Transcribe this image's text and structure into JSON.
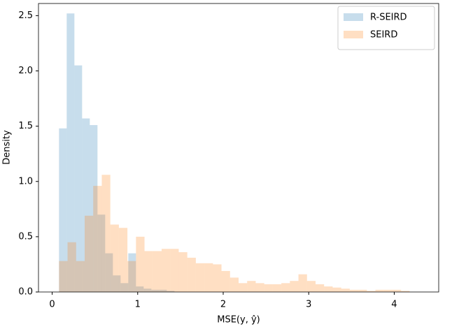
{
  "chart_data": {
    "type": "histogram",
    "xlabel": "MSE(y, ŷ)",
    "ylabel": "Density",
    "xlim": [
      -0.16,
      4.52
    ],
    "ylim": [
      0,
      2.61
    ],
    "xticks": [
      0,
      1,
      2,
      3,
      4
    ],
    "yticks": [
      {
        "value": 0,
        "label": "0.0"
      },
      0.5,
      {
        "value": 1,
        "label": "1.0"
      },
      1.5,
      {
        "value": 2,
        "label": "2.0"
      },
      2.5
    ],
    "alpha": 0.25,
    "legend": "upper right",
    "series": [
      {
        "name": "R-SEIRD",
        "color": "#1f77b4",
        "bins": [
          0.08,
          0.17,
          0.26,
          0.35,
          0.44,
          0.53,
          0.62,
          0.71,
          0.8,
          0.89,
          0.98,
          1.07,
          1.16,
          1.25,
          1.34,
          1.43
        ],
        "values": [
          1.48,
          2.52,
          2.05,
          1.57,
          1.51,
          0.7,
          0.35,
          0.15,
          0.08,
          0.35,
          0.05,
          0.03,
          0.02,
          0.02,
          0.01
        ]
      },
      {
        "name": "SEIRD",
        "color": "#ff7f0e",
        "bins": [
          0.08,
          0.18,
          0.28,
          0.38,
          0.48,
          0.58,
          0.68,
          0.78,
          0.88,
          0.98,
          1.08,
          1.18,
          1.28,
          1.38,
          1.48,
          1.58,
          1.68,
          1.78,
          1.88,
          1.98,
          2.08,
          2.18,
          2.28,
          2.38,
          2.48,
          2.58,
          2.68,
          2.78,
          2.88,
          2.98,
          3.08,
          3.18,
          3.28,
          3.38,
          3.48,
          3.58,
          3.68,
          3.78,
          3.88,
          3.98,
          4.08,
          4.18
        ],
        "values": [
          0.28,
          0.45,
          0.28,
          0.69,
          0.96,
          1.06,
          0.61,
          0.58,
          0.28,
          0.5,
          0.37,
          0.37,
          0.39,
          0.39,
          0.36,
          0.31,
          0.26,
          0.26,
          0.25,
          0.19,
          0.13,
          0.08,
          0.1,
          0.08,
          0.07,
          0.07,
          0.08,
          0.1,
          0.16,
          0.1,
          0.07,
          0.05,
          0.04,
          0.03,
          0.02,
          0.02,
          0.01,
          0.02,
          0.02,
          0.02,
          0.01
        ]
      }
    ]
  }
}
